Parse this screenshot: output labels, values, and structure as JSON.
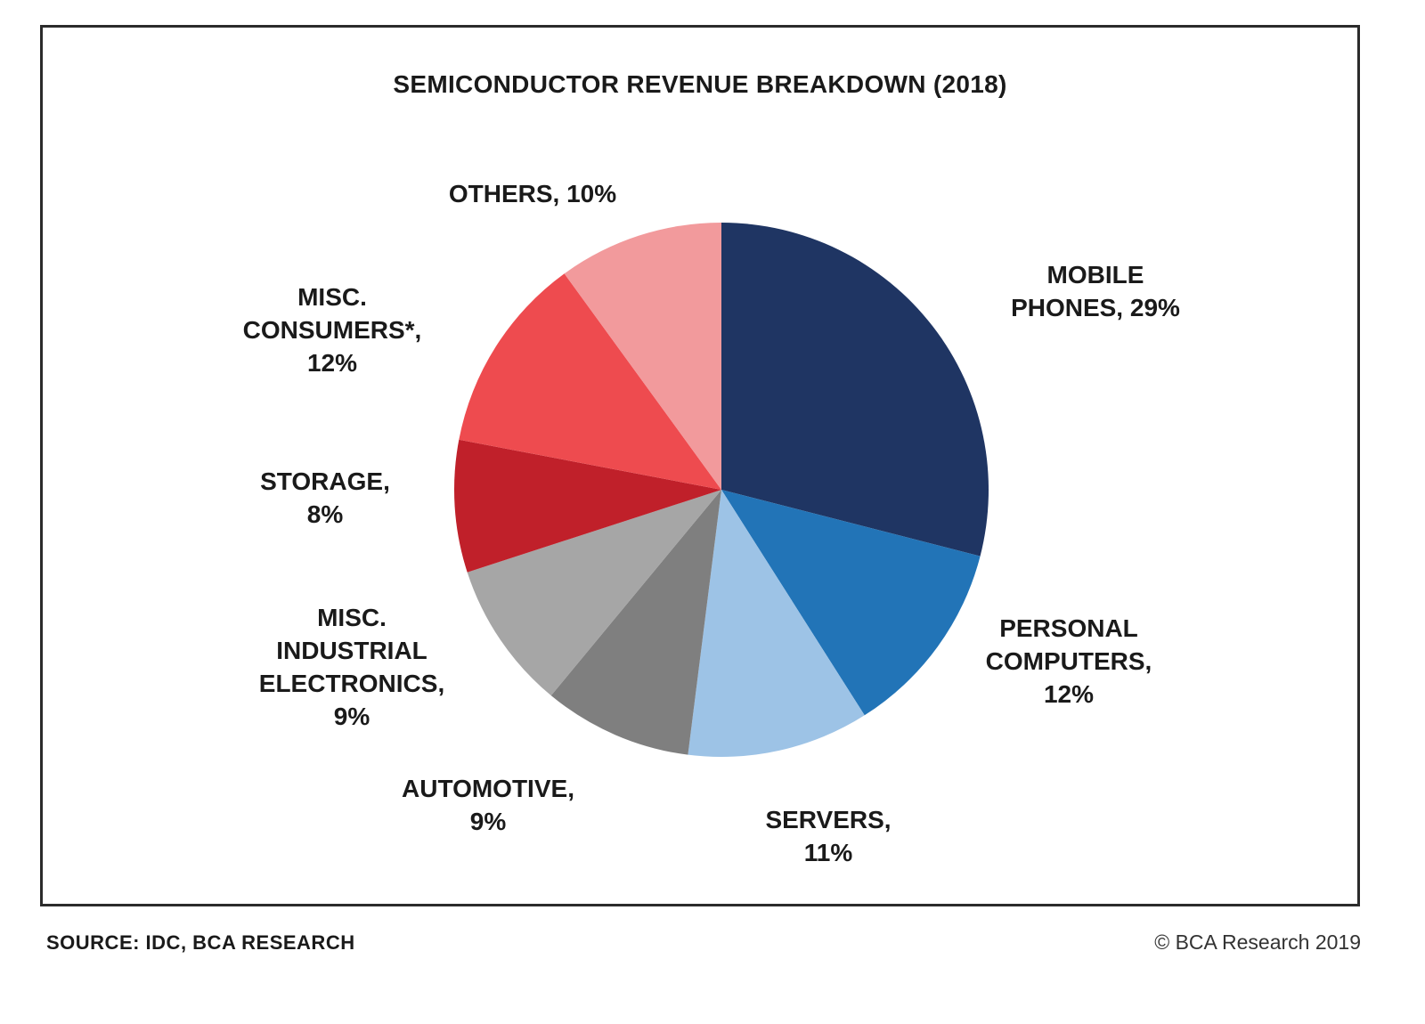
{
  "chart_data": {
    "type": "pie",
    "title": "SEMICONDUCTOR REVENUE BREAKDOWN (2018)",
    "slices": [
      {
        "lines": [
          "MOBILE",
          "PHONES, 29%"
        ],
        "value": 29,
        "color": "#1f3563"
      },
      {
        "lines": [
          "PERSONAL",
          "COMPUTERS,",
          "12%"
        ],
        "value": 12,
        "color": "#2274b7"
      },
      {
        "lines": [
          "SERVERS,",
          "11%"
        ],
        "value": 11,
        "color": "#9dc3e6"
      },
      {
        "lines": [
          "AUTOMOTIVE,",
          "9%"
        ],
        "value": 9,
        "color": "#7f7f7f"
      },
      {
        "lines": [
          "MISC.",
          "INDUSTRIAL",
          "ELECTRONICS,",
          "9%"
        ],
        "value": 9,
        "color": "#a6a6a6"
      },
      {
        "lines": [
          "STORAGE,",
          "8%"
        ],
        "value": 8,
        "color": "#c0202a"
      },
      {
        "lines": [
          "MISC.",
          "CONSUMERS*,",
          "12%"
        ],
        "value": 12,
        "color": "#ee4b4f"
      },
      {
        "lines": [
          "OTHERS, 10%"
        ],
        "value": 10,
        "color": "#f29a9c"
      }
    ],
    "start": "12 o'clock",
    "direction": "clockwise",
    "legend": "none"
  },
  "footer": {
    "source": "SOURCE: IDC, BCA RESEARCH",
    "copyright": "© BCA Research 2019"
  }
}
